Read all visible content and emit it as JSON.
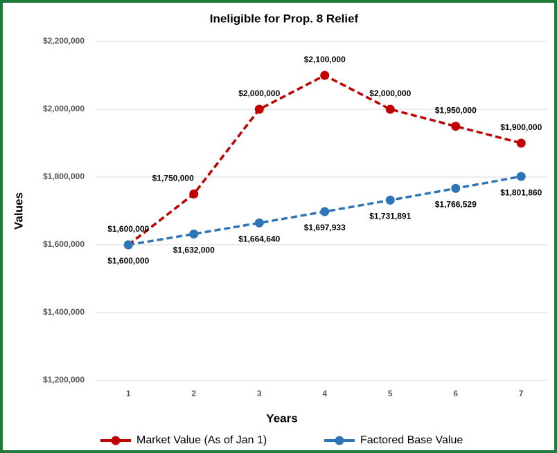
{
  "chart_data": {
    "type": "line",
    "title": "Ineligible for Prop. 8 Relief",
    "x_label": "Years",
    "y_label": "Values",
    "categories": [
      "1",
      "2",
      "3",
      "4",
      "5",
      "6",
      "7"
    ],
    "series": [
      {
        "name": "Market Value (As of Jan 1)",
        "color": "#c00000",
        "values": [
          1600000,
          1750000,
          2000000,
          2100000,
          2000000,
          1950000,
          1900000
        ],
        "value_labels": [
          "$1,600,000",
          "$1,750,000",
          "$2,000,000",
          "$2,100,000",
          "$2,000,000",
          "$1,950,000",
          "$1,900,000"
        ]
      },
      {
        "name": "Factored Base Value",
        "color": "#2e75b6",
        "values": [
          1600000,
          1632000,
          1664640,
          1697933,
          1731891,
          1766529,
          1801860
        ],
        "value_labels": [
          "$1,600,000",
          "$1,632,000",
          "$1,664,640",
          "$1,697,933",
          "$1,731,891",
          "$1,766,529",
          "$1,801,860"
        ]
      }
    ],
    "ylim": [
      1200000,
      2200000
    ],
    "yticks": [
      {
        "value": 1200000,
        "label": "$1,200,000"
      },
      {
        "value": 1400000,
        "label": "$1,400,000"
      },
      {
        "value": 1600000,
        "label": "$1,600,000"
      },
      {
        "value": 1800000,
        "label": "$1,800,000"
      },
      {
        "value": 2000000,
        "label": "$2,000,000"
      },
      {
        "value": 2200000,
        "label": "$2,200,000"
      }
    ],
    "grid": true,
    "legend": "bottom"
  }
}
